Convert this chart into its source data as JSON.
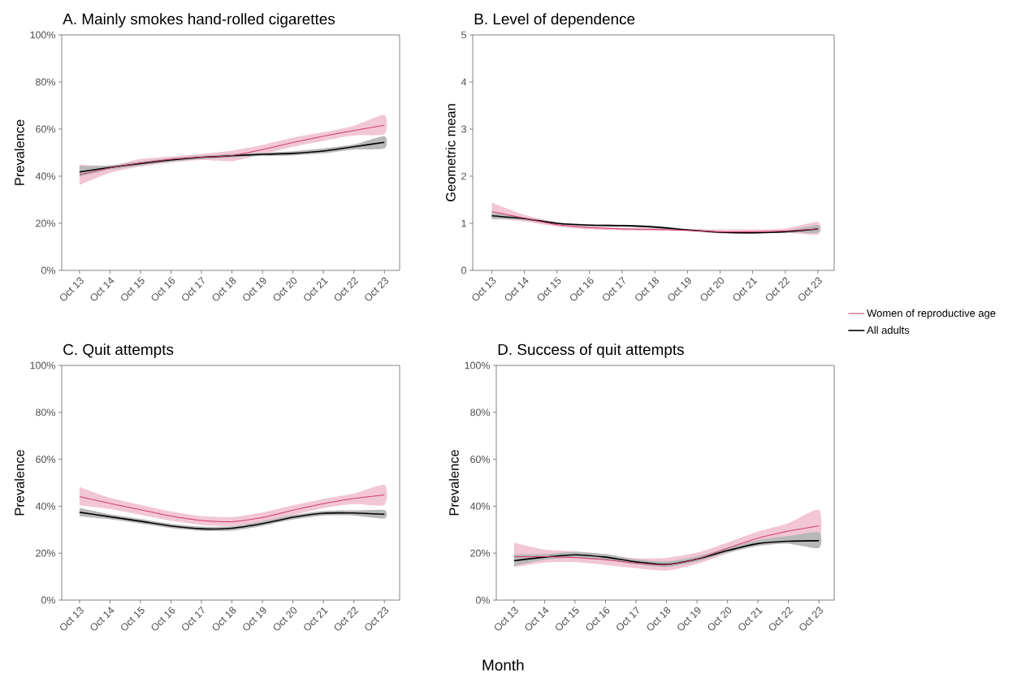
{
  "chart_data": [
    {
      "type": "line",
      "title": "A. Mainly smokes hand-rolled cigarettes",
      "ylabel": "Prevalence",
      "x": [
        "2013-10",
        "2014-10",
        "2015-10",
        "2016-10",
        "2017-10",
        "2018-10",
        "2019-10",
        "2020-10",
        "2021-10",
        "2022-10",
        "2023-10"
      ],
      "xlim": [
        "2013-03",
        "2024-04"
      ],
      "xticks": [
        {
          "value": "2013-10",
          "label": "Oct 13"
        },
        {
          "value": "2014-10",
          "label": "Oct 14"
        },
        {
          "value": "2015-10",
          "label": "Oct 15"
        },
        {
          "value": "2016-10",
          "label": "Oct 16"
        },
        {
          "value": "2017-10",
          "label": "Oct 17"
        },
        {
          "value": "2018-10",
          "label": "Oct 18"
        },
        {
          "value": "2019-10",
          "label": "Oct 19"
        },
        {
          "value": "2020-10",
          "label": "Oct 20"
        },
        {
          "value": "2021-10",
          "label": "Oct 21"
        },
        {
          "value": "2022-10",
          "label": "Oct 22"
        },
        {
          "value": "2023-10",
          "label": "Oct 23"
        }
      ],
      "ylim": [
        0,
        100
      ],
      "yticks": [
        {
          "value": 0,
          "label": "0%"
        },
        {
          "value": 20,
          "label": "20%"
        },
        {
          "value": 40,
          "label": "40%"
        },
        {
          "value": 60,
          "label": "60%"
        },
        {
          "value": 80,
          "label": "80%"
        },
        {
          "value": 100,
          "label": "100%"
        }
      ],
      "series": [
        {
          "color": "#d0336a",
          "values": [
            40.6,
            43.5,
            45.6,
            47.2,
            48.1,
            48.8,
            51.3,
            54.3,
            57.0,
            59.4,
            61.6
          ],
          "lower": [
            36.3,
            41.4,
            44.1,
            45.8,
            46.9,
            46.4,
            49.3,
            52.5,
            55.0,
            57.3,
            57.9
          ],
          "upper": [
            44.9,
            44.4,
            47.3,
            48.4,
            49.5,
            50.9,
            53.3,
            56.4,
            58.7,
            61.4,
            66.0
          ]
        },
        {
          "color": "#000000",
          "values": [
            41.8,
            43.7,
            45.4,
            46.9,
            48.0,
            48.7,
            49.3,
            49.7,
            50.7,
            52.5,
            54.4
          ],
          "lower": [
            39.8,
            42.8,
            44.6,
            46.1,
            47.3,
            48.0,
            48.6,
            48.8,
            49.7,
            51.3,
            51.8
          ],
          "upper": [
            44.3,
            44.6,
            46.2,
            47.7,
            48.7,
            49.4,
            50.0,
            50.6,
            51.8,
            53.5,
            57.0
          ]
        }
      ]
    },
    {
      "type": "line",
      "title": "B. Level of dependence",
      "ylabel": "Geometric mean",
      "legend": "right",
      "x": [
        "2013-10",
        "2014-10",
        "2015-10",
        "2016-10",
        "2017-10",
        "2018-10",
        "2019-10",
        "2020-10",
        "2021-10",
        "2022-10",
        "2023-10"
      ],
      "xlim": [
        "2013-03",
        "2024-04"
      ],
      "xticks": [
        {
          "value": "2013-10",
          "label": "Oct 13"
        },
        {
          "value": "2014-10",
          "label": "Oct 14"
        },
        {
          "value": "2015-10",
          "label": "Oct 15"
        },
        {
          "value": "2016-10",
          "label": "Oct 16"
        },
        {
          "value": "2017-10",
          "label": "Oct 17"
        },
        {
          "value": "2018-10",
          "label": "Oct 18"
        },
        {
          "value": "2019-10",
          "label": "Oct 19"
        },
        {
          "value": "2020-10",
          "label": "Oct 20"
        },
        {
          "value": "2021-10",
          "label": "Oct 21"
        },
        {
          "value": "2022-10",
          "label": "Oct 22"
        },
        {
          "value": "2023-10",
          "label": "Oct 23"
        }
      ],
      "ylim": [
        0,
        5
      ],
      "yticks": [
        0,
        1,
        2,
        3,
        4,
        5
      ],
      "series": [
        {
          "name": "Women of reproductive age",
          "color": "#d0336a",
          "values": [
            1.25,
            1.11,
            0.97,
            0.91,
            0.88,
            0.87,
            0.85,
            0.82,
            0.82,
            0.84,
            0.88
          ],
          "lower": [
            1.1,
            1.04,
            0.93,
            0.87,
            0.85,
            0.84,
            0.83,
            0.79,
            0.78,
            0.8,
            0.76
          ],
          "upper": [
            1.44,
            1.18,
            1.02,
            0.95,
            0.91,
            0.9,
            0.88,
            0.87,
            0.87,
            0.89,
            1.03
          ]
        },
        {
          "name": "All adults",
          "color": "#000000",
          "values": [
            1.16,
            1.1,
            1.0,
            0.96,
            0.95,
            0.92,
            0.86,
            0.81,
            0.8,
            0.82,
            0.88
          ],
          "lower": [
            1.09,
            1.07,
            0.98,
            0.94,
            0.93,
            0.9,
            0.84,
            0.79,
            0.78,
            0.8,
            0.8
          ],
          "upper": [
            1.23,
            1.12,
            1.02,
            0.98,
            0.97,
            0.95,
            0.88,
            0.83,
            0.82,
            0.84,
            0.96
          ]
        }
      ]
    },
    {
      "type": "line",
      "title": "C. Quit attempts",
      "ylabel": "Prevalence",
      "x": [
        "2013-10",
        "2014-10",
        "2015-10",
        "2016-10",
        "2017-10",
        "2018-10",
        "2019-10",
        "2020-10",
        "2021-10",
        "2022-10",
        "2023-10"
      ],
      "xlim": [
        "2013-03",
        "2024-04"
      ],
      "xticks": [
        {
          "value": "2013-10",
          "label": "Oct 13"
        },
        {
          "value": "2014-10",
          "label": "Oct 14"
        },
        {
          "value": "2015-10",
          "label": "Oct 15"
        },
        {
          "value": "2016-10",
          "label": "Oct 16"
        },
        {
          "value": "2017-10",
          "label": "Oct 17"
        },
        {
          "value": "2018-10",
          "label": "Oct 18"
        },
        {
          "value": "2019-10",
          "label": "Oct 19"
        },
        {
          "value": "2020-10",
          "label": "Oct 20"
        },
        {
          "value": "2021-10",
          "label": "Oct 21"
        },
        {
          "value": "2022-10",
          "label": "Oct 22"
        },
        {
          "value": "2023-10",
          "label": "Oct 23"
        }
      ],
      "ylim": [
        0,
        100
      ],
      "yticks": [
        {
          "value": 0,
          "label": "0%"
        },
        {
          "value": 20,
          "label": "20%"
        },
        {
          "value": 40,
          "label": "40%"
        },
        {
          "value": 60,
          "label": "60%"
        },
        {
          "value": 80,
          "label": "80%"
        },
        {
          "value": 100,
          "label": "100%"
        }
      ],
      "series": [
        {
          "color": "#d0336a",
          "values": [
            44.1,
            41.2,
            38.5,
            35.8,
            33.9,
            33.4,
            35.2,
            38.3,
            41.1,
            43.3,
            44.8
          ],
          "lower": [
            40.4,
            38.8,
            36.3,
            33.8,
            32.0,
            31.6,
            33.2,
            36.3,
            39.2,
            40.9,
            40.6
          ],
          "upper": [
            48.2,
            43.6,
            40.6,
            37.8,
            35.8,
            35.4,
            37.4,
            40.4,
            43.1,
            45.4,
            49.1
          ]
        },
        {
          "color": "#000000",
          "values": [
            37.4,
            35.5,
            33.6,
            31.6,
            30.4,
            30.6,
            32.6,
            35.3,
            37.0,
            37.1,
            36.6
          ],
          "lower": [
            35.7,
            34.4,
            32.6,
            30.7,
            29.5,
            29.6,
            31.6,
            34.3,
            36.0,
            36.0,
            34.8
          ],
          "upper": [
            39.3,
            36.6,
            34.6,
            32.5,
            31.3,
            31.5,
            33.6,
            36.3,
            38.0,
            38.2,
            38.4
          ]
        }
      ]
    },
    {
      "type": "line",
      "title": "D. Success of quit attempts",
      "ylabel": "Prevalence",
      "xlabel": "Month",
      "x": [
        "2013-10",
        "2014-10",
        "2015-10",
        "2016-10",
        "2017-10",
        "2018-10",
        "2019-10",
        "2020-10",
        "2021-10",
        "2022-10",
        "2023-10"
      ],
      "xlim": [
        "2013-03",
        "2024-04"
      ],
      "xticks": [
        {
          "value": "2013-10",
          "label": "Oct 13"
        },
        {
          "value": "2014-10",
          "label": "Oct 14"
        },
        {
          "value": "2015-10",
          "label": "Oct 15"
        },
        {
          "value": "2016-10",
          "label": "Oct 16"
        },
        {
          "value": "2017-10",
          "label": "Oct 17"
        },
        {
          "value": "2018-10",
          "label": "Oct 18"
        },
        {
          "value": "2019-10",
          "label": "Oct 19"
        },
        {
          "value": "2020-10",
          "label": "Oct 20"
        },
        {
          "value": "2021-10",
          "label": "Oct 21"
        },
        {
          "value": "2022-10",
          "label": "Oct 22"
        },
        {
          "value": "2023-10",
          "label": "Oct 23"
        }
      ],
      "ylim": [
        0,
        100
      ],
      "yticks": [
        {
          "value": 0,
          "label": "0%"
        },
        {
          "value": 20,
          "label": "20%"
        },
        {
          "value": 40,
          "label": "40%"
        },
        {
          "value": 60,
          "label": "60%"
        },
        {
          "value": 80,
          "label": "80%"
        },
        {
          "value": 100,
          "label": "100%"
        }
      ],
      "series": [
        {
          "color": "#d0336a",
          "values": [
            18.5,
            18.5,
            18.1,
            17.2,
            15.8,
            15.0,
            17.5,
            22.1,
            26.4,
            29.4,
            31.6
          ],
          "lower": [
            14.0,
            16.0,
            16.2,
            15.0,
            13.6,
            12.6,
            15.4,
            19.9,
            24.0,
            26.0,
            25.0
          ],
          "upper": [
            24.5,
            21.5,
            20.7,
            19.5,
            17.8,
            18.0,
            20.2,
            24.5,
            29.2,
            32.8,
            38.5
          ]
        },
        {
          "color": "#000000",
          "values": [
            16.8,
            18.3,
            19.3,
            18.3,
            16.3,
            15.2,
            17.5,
            21.1,
            24.1,
            25.1,
            25.3
          ],
          "lower": [
            14.5,
            17.2,
            18.2,
            17.1,
            15.2,
            14.1,
            16.4,
            20.2,
            23.0,
            24.0,
            22.2
          ],
          "upper": [
            19.5,
            19.6,
            20.6,
            19.6,
            17.4,
            16.5,
            18.6,
            22.2,
            25.6,
            27.3,
            29.0
          ]
        }
      ]
    }
  ]
}
